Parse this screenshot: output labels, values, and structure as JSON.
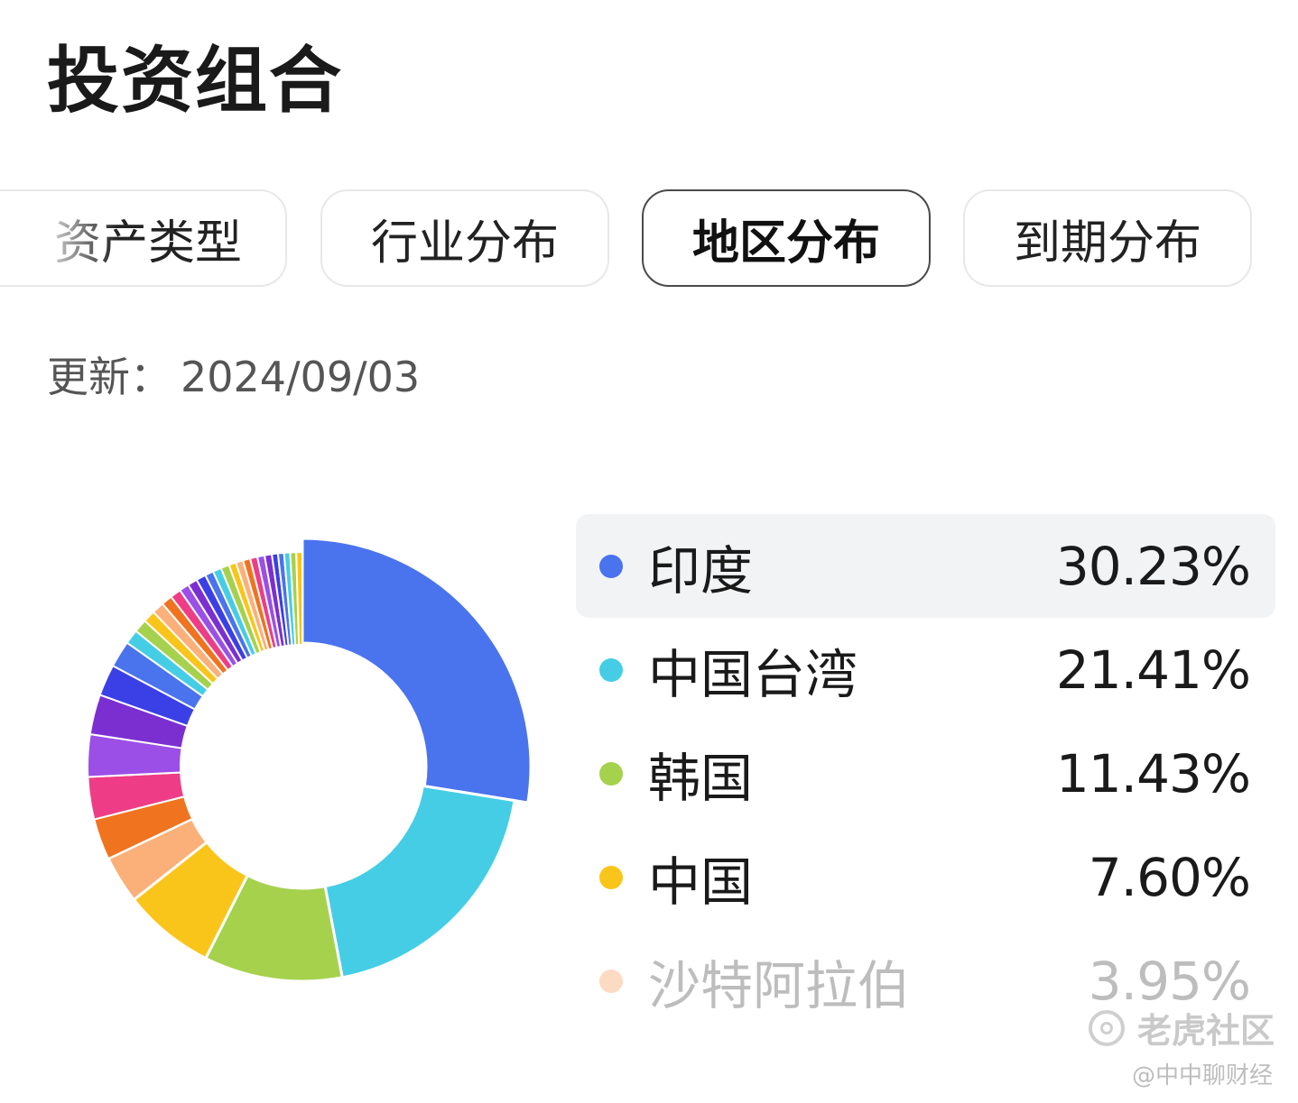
{
  "page": {
    "title": "投资组合",
    "update_label": "更新：",
    "update_date": "2024/09/03"
  },
  "tabs": [
    {
      "label": "资产类型",
      "active": false
    },
    {
      "label": "行业分布",
      "active": false
    },
    {
      "label": "地区分布",
      "active": true
    },
    {
      "label": "到期分布",
      "active": false
    }
  ],
  "chart_data": {
    "type": "pie",
    "variant": "donut",
    "labeled": [
      {
        "name": "印度",
        "value": 30.23,
        "label": "30.23%",
        "color": "#4a73ee"
      },
      {
        "name": "中国台湾",
        "value": 21.41,
        "label": "21.41%",
        "color": "#45cde6"
      },
      {
        "name": "韩国",
        "value": 11.43,
        "label": "11.43%",
        "color": "#a6d14d"
      },
      {
        "name": "中国",
        "value": 7.6,
        "label": "7.60%",
        "color": "#fac51a"
      },
      {
        "name": "沙特阿拉伯",
        "value": 3.95,
        "label": "3.95%",
        "color": "#fbb07a"
      }
    ],
    "unlabeled_values": [
      3.4,
      3.5,
      3.5,
      3.3,
      2.6,
      2.2,
      1.2,
      1.1,
      1.0,
      1.0,
      0.9,
      0.9,
      0.8,
      0.8,
      0.8,
      0.7,
      0.7,
      0.7,
      0.6,
      0.6,
      0.6,
      0.6,
      0.6,
      0.6,
      0.5,
      0.5,
      0.5,
      0.5,
      0.5
    ],
    "unlabeled_colors": [
      "#f0731f",
      "#ee3d86",
      "#9b4fe6",
      "#7b2fd1",
      "#3b3fe6",
      "#4a73ee",
      "#45cde6",
      "#a6d14d",
      "#fac51a",
      "#fbb07a",
      "#f0731f",
      "#ee3d86",
      "#9b4fe6",
      "#7b2fd1",
      "#3b3fe6",
      "#4a73ee",
      "#45cde6",
      "#a6d14d",
      "#fac51a",
      "#fbb07a",
      "#f0731f",
      "#ee3d86",
      "#9b4fe6",
      "#7b2fd1",
      "#3b3fe6",
      "#4a73ee",
      "#45cde6",
      "#a6d14d",
      "#fac51a"
    ]
  },
  "legend": {
    "highlight_index": 0,
    "faded_index": 4
  },
  "watermark": {
    "brand": "老虎社区",
    "handle": "@中中聊财经"
  }
}
